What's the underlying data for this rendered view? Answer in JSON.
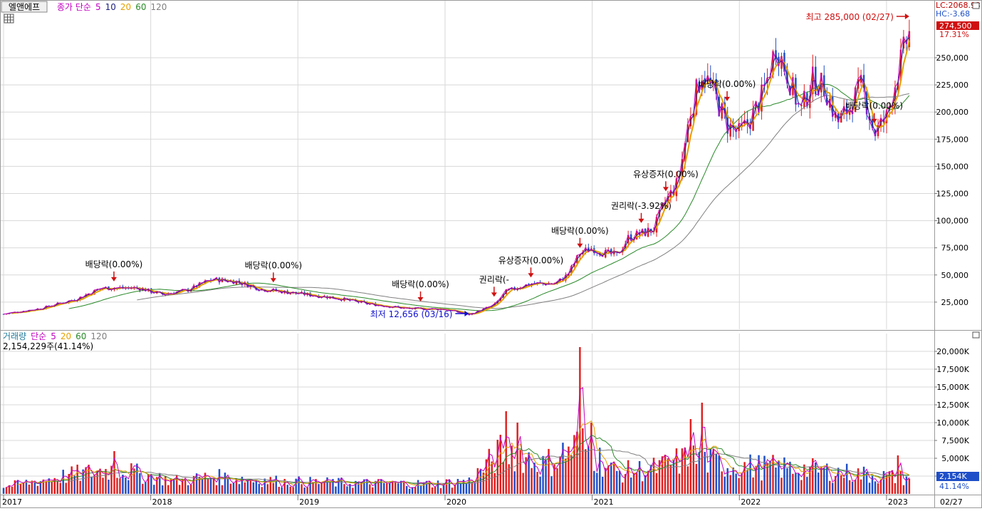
{
  "stock": {
    "name": "엘앤에프"
  },
  "price_panel": {
    "legend_prefix": "종가 단순",
    "legend_periods": [
      "5",
      "10",
      "20",
      "60",
      "120"
    ],
    "lc_label": "LC:2068.93",
    "hc_label": "HC:-3.68",
    "current_price": "274,500",
    "current_change": "17.31%",
    "high_annotation": "최고 285,000 (02/27)",
    "low_annotation": "최저 12,656 (03/16)"
  },
  "volume_panel": {
    "legend_title": "거래량",
    "legend_prefix": "단순",
    "legend_periods": [
      "5",
      "20",
      "60",
      "120"
    ],
    "info": "2,154,229주(41.14%)",
    "current_volume": "2,154K",
    "current_ratio": "41.14%"
  },
  "colors": {
    "up": "#e02020",
    "down": "#1f4fc8",
    "ma5": "#c000c0",
    "ma10": "#202080",
    "ma20": "#e6a000",
    "ma60": "#2a8a2a",
    "ma120": "#808080",
    "arrow_up": "#d01010",
    "arrow_down": "#1010d0",
    "grid": "#d8d8d8"
  },
  "chart_data": [
    {
      "type": "candlestick",
      "title": "엘앤에프",
      "period": "weekly",
      "ylim": [
        0,
        292000
      ],
      "yticks": [
        25000,
        50000,
        75000,
        100000,
        125000,
        150000,
        175000,
        200000,
        225000,
        250000
      ],
      "ytick_labels": [
        "25,000",
        "50,000",
        "75,000",
        "100,000",
        "125,000",
        "150,000",
        "175,000",
        "200,000",
        "225,000",
        "250,000"
      ],
      "x_labels": [
        "2017",
        "2018",
        "2019",
        "2020",
        "2021",
        "2022",
        "2023",
        "02/27"
      ],
      "close_anchors": [
        [
          "2017-01",
          14000
        ],
        [
          "2017-04",
          19000
        ],
        [
          "2017-07",
          28000
        ],
        [
          "2017-09",
          38000
        ],
        [
          "2017-12",
          38000
        ],
        [
          "2018-02",
          32000
        ],
        [
          "2018-04",
          36000
        ],
        [
          "2018-06",
          46000
        ],
        [
          "2018-08",
          44000
        ],
        [
          "2018-10",
          37000
        ],
        [
          "2019-01",
          33000
        ],
        [
          "2019-04",
          29000
        ],
        [
          "2019-07",
          23000
        ],
        [
          "2019-10",
          19000
        ],
        [
          "2020-01",
          18500
        ],
        [
          "2020-03",
          13500
        ],
        [
          "2020-05",
          22000
        ],
        [
          "2020-06",
          35000
        ],
        [
          "2020-08",
          42000
        ],
        [
          "2020-10",
          42000
        ],
        [
          "2020-11",
          50000
        ],
        [
          "2020-12",
          70000
        ],
        [
          "2021-01",
          75000
        ],
        [
          "2021-02",
          70000
        ],
        [
          "2021-03",
          68000
        ],
        [
          "2021-04",
          85000
        ],
        [
          "2021-05",
          88000
        ],
        [
          "2021-06",
          92000
        ],
        [
          "2021-07",
          118000
        ],
        [
          "2021-08",
          135000
        ],
        [
          "2021-09",
          200000
        ],
        [
          "2021-10",
          238000
        ],
        [
          "2021-11",
          215000
        ],
        [
          "2021-12",
          188000
        ],
        [
          "2022-01",
          180000
        ],
        [
          "2022-02",
          195000
        ],
        [
          "2022-03",
          218000
        ],
        [
          "2022-04",
          262000
        ],
        [
          "2022-05",
          232000
        ],
        [
          "2022-06",
          200000
        ],
        [
          "2022-07",
          230000
        ],
        [
          "2022-08",
          222000
        ],
        [
          "2022-09",
          190000
        ],
        [
          "2022-10",
          205000
        ],
        [
          "2022-11",
          225000
        ],
        [
          "2022-12",
          180000
        ],
        [
          "2023-01",
          195000
        ],
        [
          "2023-02",
          240000
        ],
        [
          "2023-02-27",
          274500
        ]
      ],
      "moving_averages": [
        "5",
        "10",
        "20",
        "60",
        "120"
      ],
      "high": {
        "value": 285000,
        "date": "02/27"
      },
      "low": {
        "value": 12656,
        "date": "03/16"
      },
      "events": [
        {
          "date": "2017-10",
          "label": "배당락(0.00%)"
        },
        {
          "date": "2018-11",
          "label": "배당락(0.00%)"
        },
        {
          "date": "2019-11",
          "label": "배당락(0.00%)"
        },
        {
          "date": "2020-05",
          "label": "권리락(-"
        },
        {
          "date": "2020-08",
          "label": "유상증자(0.00%)"
        },
        {
          "date": "2020-12",
          "label": "배당락(0.00%)"
        },
        {
          "date": "2021-05",
          "label": "권리락(-3.92%)"
        },
        {
          "date": "2021-07",
          "label": "유상증자(0.00%)"
        },
        {
          "date": "2021-12",
          "label": "배당락(0.00%)"
        },
        {
          "date": "2022-12",
          "label": "배당락(0.00%)"
        }
      ]
    },
    {
      "type": "bar",
      "title": "거래량",
      "ylim": [
        0,
        21500
      ],
      "yticks": [
        2500,
        5000,
        7500,
        10000,
        12500,
        15000,
        17500,
        20000
      ],
      "ytick_labels": [
        "2,500K",
        "5,000K",
        "7,500K",
        "10,000K",
        "12,500K",
        "15,000K",
        "17,500K",
        "20,000K"
      ],
      "volume_anchors_k": [
        [
          "2017-01",
          1000
        ],
        [
          "2017-06",
          2500
        ],
        [
          "2017-10",
          3500
        ],
        [
          "2018-03",
          1800
        ],
        [
          "2018-06",
          2400
        ],
        [
          "2018-12",
          1700
        ],
        [
          "2019-06",
          1500
        ],
        [
          "2019-12",
          1400
        ],
        [
          "2020-03",
          1800
        ],
        [
          "2020-06",
          6500
        ],
        [
          "2020-09",
          4000
        ],
        [
          "2020-12",
          7000
        ],
        [
          "2021-03",
          3000
        ],
        [
          "2021-06",
          3500
        ],
        [
          "2021-09",
          5000
        ],
        [
          "2021-12",
          4000
        ],
        [
          "2022-06",
          3500
        ],
        [
          "2022-12",
          2600
        ],
        [
          "2023-02-27",
          2154
        ]
      ],
      "volume_spikes_k": [
        [
          "2017-10",
          6000
        ],
        [
          "2020-06",
          11600
        ],
        [
          "2020-07",
          10000
        ],
        [
          "2020-12",
          20600
        ],
        [
          "2021-01",
          10000
        ],
        [
          "2021-09",
          10500
        ],
        [
          "2021-10",
          12800
        ],
        [
          "2022-05",
          6600
        ],
        [
          "2023-02",
          5400
        ]
      ],
      "moving_averages": [
        "5",
        "20",
        "60",
        "120"
      ]
    }
  ]
}
